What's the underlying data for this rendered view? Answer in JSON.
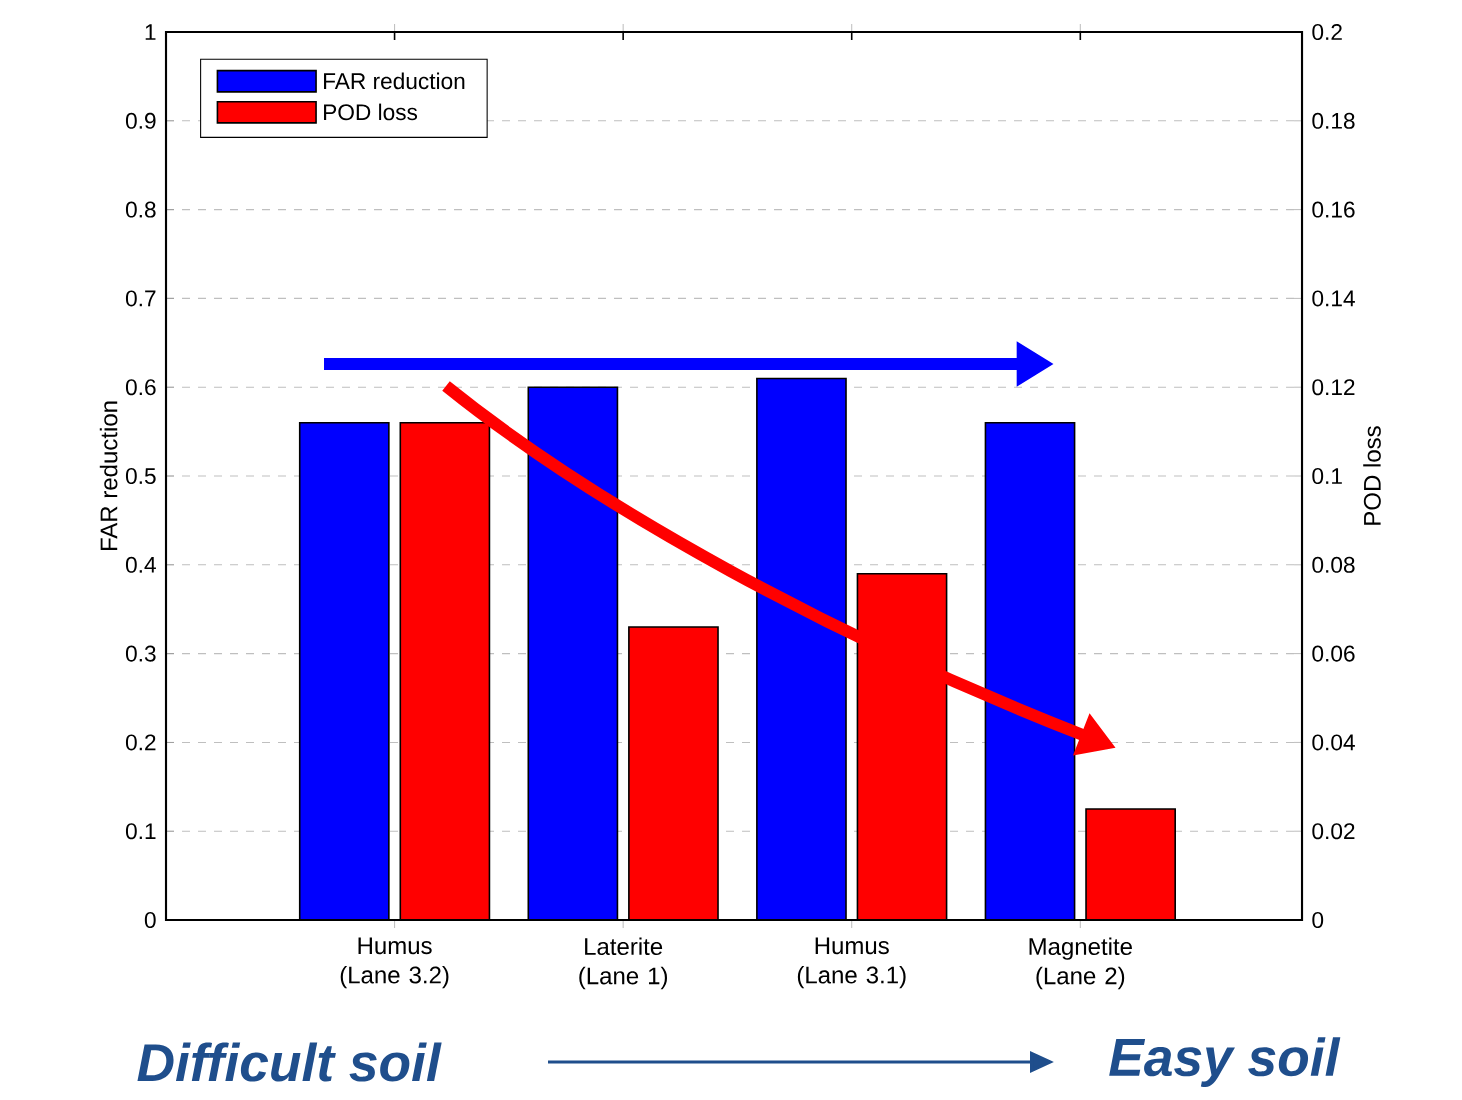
{
  "chart_data": {
    "type": "bar",
    "categories": [
      "Humus (Lane 3.2)",
      "Laterite (Lane 1)",
      "Humus (Lane 3.1)",
      "Magnetite (Lane 2)"
    ],
    "ylabel": "FAR reduction",
    "y2label": "POD loss",
    "series": [
      {
        "name": "FAR reduction",
        "color": "#0000ff",
        "values": [
          0.56,
          0.6,
          0.61,
          0.56
        ]
      },
      {
        "name": "POD loss",
        "color": "#ff0000",
        "values": [
          0.112,
          0.066,
          0.078,
          0.025
        ],
        "axis": "y2"
      }
    ],
    "ylim": [
      0,
      1
    ],
    "yticks": [
      0,
      0.1,
      0.2,
      0.3,
      0.4,
      0.5,
      0.6,
      0.7,
      0.8,
      0.9,
      1
    ],
    "y2lim": [
      0,
      0.2
    ],
    "y2ticks": [
      0,
      0.02,
      0.04,
      0.06,
      0.08,
      0.1,
      0.12,
      0.14,
      0.16,
      0.18,
      0.2
    ],
    "grid": "y",
    "legend": "top left",
    "annotations": [
      "Difficult soil",
      "Easy soil"
    ]
  }
}
